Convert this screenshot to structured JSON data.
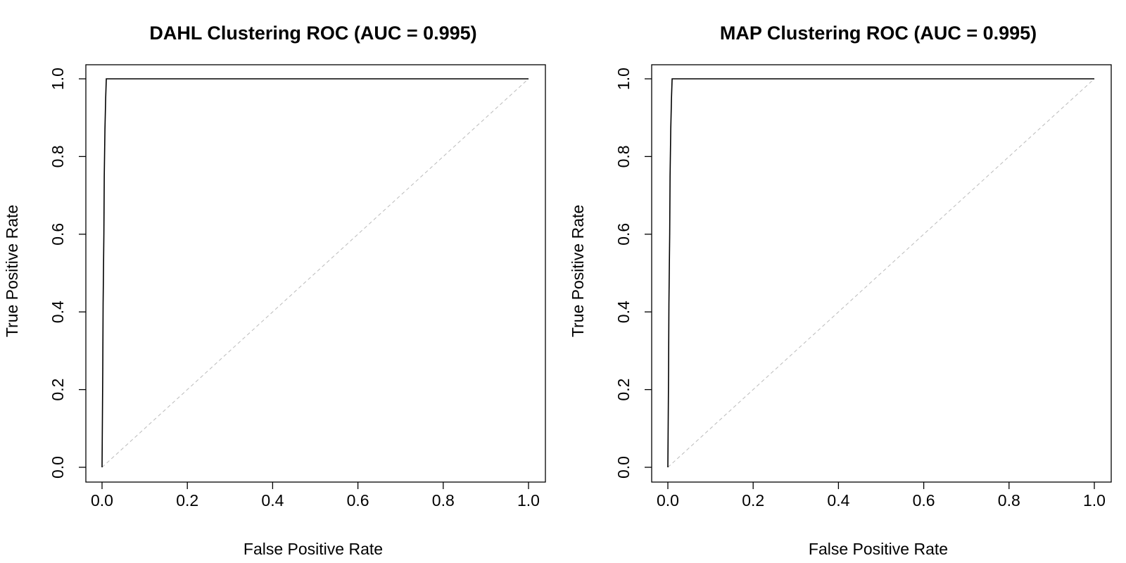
{
  "chart_data": [
    {
      "type": "line",
      "title": "DAHL Clustering ROC (AUC = 0.995)",
      "xlabel": "False Positive Rate",
      "ylabel": "True Positive Rate",
      "xlim": [
        0,
        1
      ],
      "ylim": [
        0,
        1
      ],
      "x_ticks": [
        "0.0",
        "0.2",
        "0.4",
        "0.6",
        "0.8",
        "1.0"
      ],
      "y_ticks": [
        "0.0",
        "0.2",
        "0.4",
        "0.6",
        "0.8",
        "1.0"
      ],
      "series": [
        {
          "x": [
            0,
            0.0017,
            0.0025,
            0.0043,
            0.0052,
            0.0068,
            0.0085,
            0.01,
            1.0
          ],
          "y": [
            0,
            0.25,
            0.42,
            0.6,
            0.75,
            0.87,
            0.95,
            1.0,
            1.0
          ],
          "color": "#000000"
        }
      ],
      "reference_line": {
        "x": [
          0,
          1
        ],
        "y": [
          0,
          1
        ],
        "color": "#bbbbbb",
        "style": "dashed"
      },
      "grid": false,
      "legend": "none"
    },
    {
      "type": "line",
      "title": "MAP Clustering ROC (AUC = 0.995)",
      "xlabel": "False Positive Rate",
      "ylabel": "True Positive Rate",
      "xlim": [
        0,
        1
      ],
      "ylim": [
        0,
        1
      ],
      "x_ticks": [
        "0.0",
        "0.2",
        "0.4",
        "0.6",
        "0.8",
        "1.0"
      ],
      "y_ticks": [
        "0.0",
        "0.2",
        "0.4",
        "0.6",
        "0.8",
        "1.0"
      ],
      "series": [
        {
          "x": [
            0,
            0.0017,
            0.0025,
            0.0043,
            0.0052,
            0.0068,
            0.0085,
            0.01,
            1.0
          ],
          "y": [
            0,
            0.25,
            0.42,
            0.6,
            0.75,
            0.87,
            0.95,
            1.0,
            1.0
          ],
          "color": "#000000"
        }
      ],
      "reference_line": {
        "x": [
          0,
          1
        ],
        "y": [
          0,
          1
        ],
        "color": "#bbbbbb",
        "style": "dashed"
      },
      "grid": false,
      "legend": "none"
    }
  ]
}
